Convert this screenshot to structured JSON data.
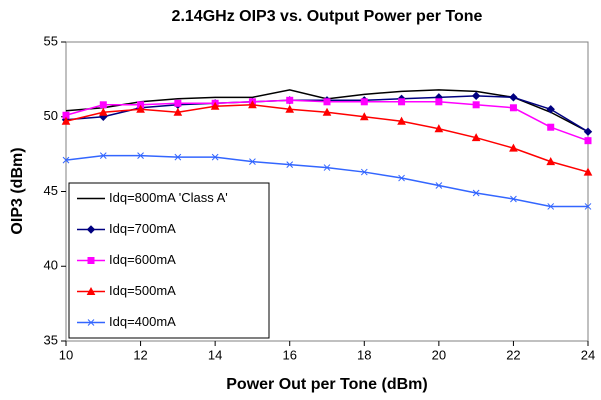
{
  "chart_data": {
    "type": "line",
    "title": "2.14GHz OIP3 vs. Output Power per Tone",
    "x_label": "Power Out per Tone (dBm)",
    "y_label": "OIP3 (dBm)",
    "x": [
      10,
      11,
      12,
      13,
      14,
      15,
      16,
      17,
      18,
      19,
      20,
      21,
      22,
      23,
      24
    ],
    "series": [
      {
        "name": "Idq=800mA 'Class A'",
        "color": "#000000",
        "marker": "none",
        "values": [
          50.4,
          50.6,
          51.0,
          51.2,
          51.3,
          51.3,
          51.8,
          51.2,
          51.5,
          51.7,
          51.8,
          51.7,
          51.3,
          50.3,
          49.0
        ]
      },
      {
        "name": "Idq=700mA",
        "color": "#000080",
        "marker": "diamond",
        "values": [
          49.8,
          50.0,
          50.6,
          50.8,
          50.9,
          51.0,
          51.1,
          51.1,
          51.1,
          51.2,
          51.3,
          51.4,
          51.3,
          50.5,
          49.0
        ]
      },
      {
        "name": "Idq=600mA",
        "color": "#ff00ff",
        "marker": "square",
        "values": [
          50.1,
          50.8,
          50.8,
          50.9,
          50.9,
          51.0,
          51.1,
          51.0,
          51.0,
          51.0,
          51.0,
          50.8,
          50.6,
          49.3,
          48.4
        ]
      },
      {
        "name": "Idq=500mA",
        "color": "#ff0000",
        "marker": "triangle",
        "values": [
          49.7,
          50.3,
          50.5,
          50.3,
          50.7,
          50.8,
          50.5,
          50.3,
          50.0,
          49.7,
          49.2,
          48.6,
          47.9,
          47.0,
          46.3
        ]
      },
      {
        "name": "Idq=400mA",
        "color": "#3366ff",
        "marker": "x",
        "values": [
          47.1,
          47.4,
          47.4,
          47.3,
          47.3,
          47.0,
          46.8,
          46.6,
          46.3,
          45.9,
          45.4,
          44.9,
          44.5,
          44.0,
          44.0
        ]
      }
    ],
    "xlim": [
      10,
      24
    ],
    "xticks": [
      10,
      12,
      14,
      16,
      18,
      20,
      22,
      24
    ],
    "ylim": [
      35,
      55
    ],
    "yticks": [
      35,
      40,
      45,
      50,
      55
    ],
    "legend": "lower left"
  }
}
